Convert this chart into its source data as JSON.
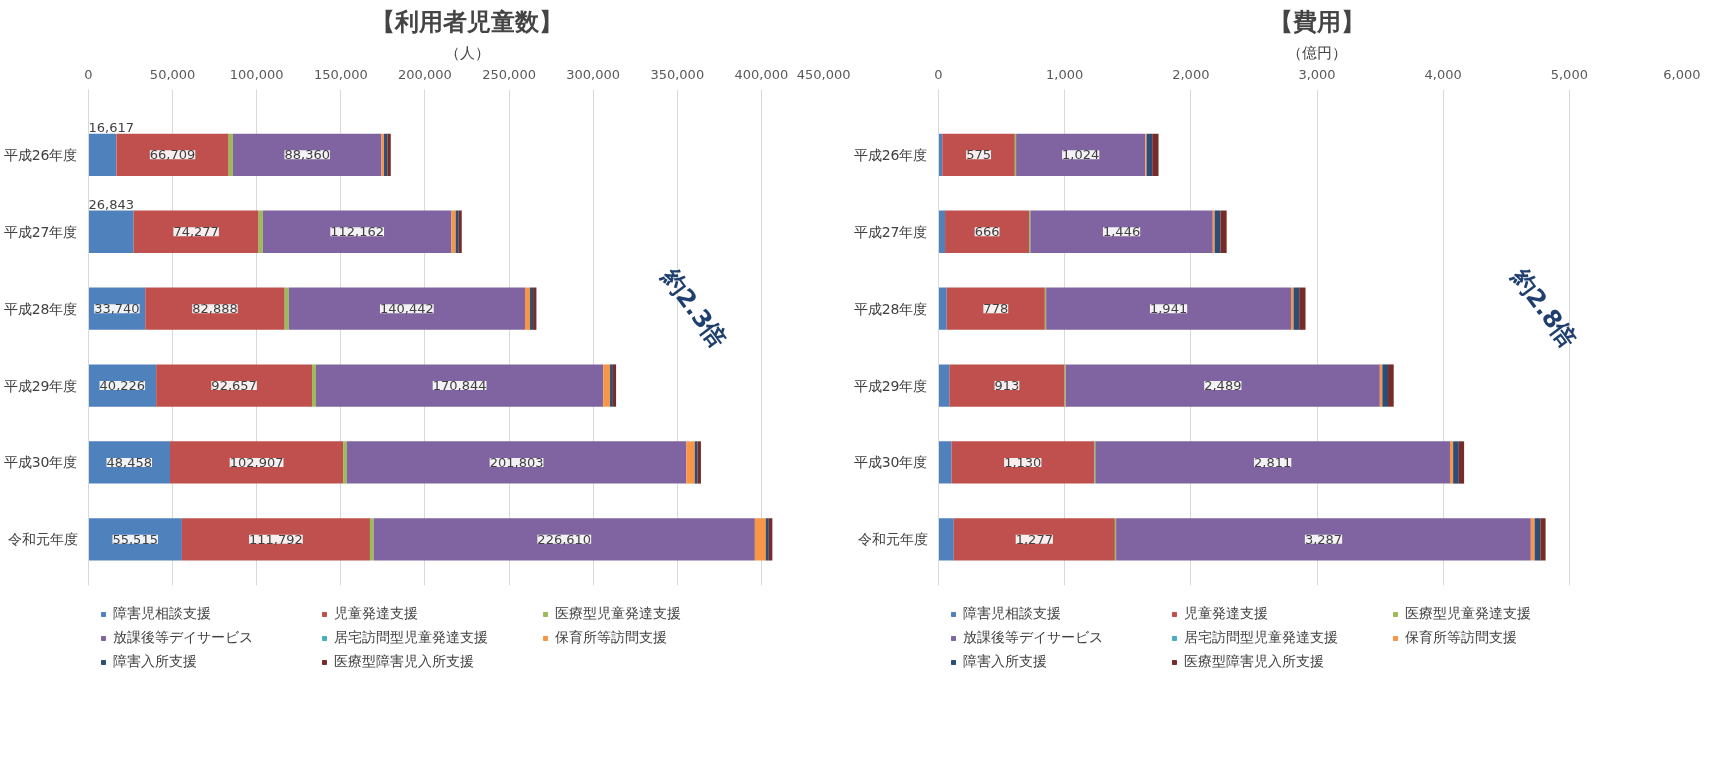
{
  "chart_data": [
    {
      "type": "bar",
      "orientation": "horizontal",
      "stacked": true,
      "title": "【利用者児童数】",
      "xlabel": "（人）",
      "categories": [
        "平成26年度",
        "平成27年度",
        "平成28年度",
        "平成29年度",
        "平成30年度",
        "令和元年度"
      ],
      "xlim": [
        0,
        450000
      ],
      "xticks": [
        0,
        {
          "value": 50000,
          "label": "50,000"
        },
        {
          "value": 100000,
          "label": "100,000"
        },
        {
          "value": 150000,
          "label": "150,000"
        },
        {
          "value": 200000,
          "label": "200,000"
        },
        {
          "value": 250000,
          "label": "250,000"
        },
        {
          "value": 300000,
          "label": "300,000"
        },
        {
          "value": 350000,
          "label": "350,000"
        },
        {
          "value": 400000,
          "label": "400,000"
        },
        {
          "value": 450000,
          "label": "450,000"
        }
      ],
      "grid": "x",
      "legend": "bottom",
      "annotations": [
        "約2.3倍"
      ],
      "series": [
        {
          "name": "障害児相談支援",
          "color": "#4f81bd",
          "values": [
            16617,
            26843,
            33740,
            40226,
            48458,
            55515
          ],
          "value_labels": [
            "16,617",
            "26,843",
            "33,740",
            "40,226",
            "48,458",
            "55,515"
          ]
        },
        {
          "name": "児童発達支援",
          "color": "#c0504d",
          "values": [
            66709,
            74277,
            82888,
            92657,
            102907,
            111792
          ],
          "value_labels": [
            "66,709",
            "74,277",
            "82,888",
            "92,657",
            "102,907",
            "111,792"
          ]
        },
        {
          "name": "医療型児童発達支援",
          "color": "#9bbb59",
          "values": [
            2500,
            2500,
            2400,
            2300,
            2200,
            2200
          ]
        },
        {
          "name": "放課後等デイサービス",
          "color": "#8064a2",
          "values": [
            88360,
            112162,
            140442,
            170844,
            201803,
            226610
          ],
          "value_labels": [
            "88,360",
            "112,162",
            "140,442",
            "170,844",
            "201,803",
            "226,610"
          ]
        },
        {
          "name": "居宅訪問型児童発達支援",
          "color": "#4bacc6",
          "values": [
            0,
            0,
            0,
            0,
            null,
            null
          ]
        },
        {
          "name": "保育所等訪問支援",
          "color": "#f79646",
          "values": [
            1500,
            2500,
            3000,
            4000,
            5000,
            6500
          ]
        },
        {
          "name": "障害入所支援",
          "color": "#2c4d75",
          "values": [
            2000,
            1800,
            1800,
            1700,
            1700,
            1800
          ]
        },
        {
          "name": "医療型障害児入所支援",
          "color": "#772c2a",
          "values": [
            2000,
            1800,
            2000,
            1900,
            2000,
            2100
          ]
        }
      ]
    },
    {
      "type": "bar",
      "orientation": "horizontal",
      "stacked": true,
      "title": "【費用】",
      "xlabel": "（億円）",
      "categories": [
        "平成26年度",
        "平成27年度",
        "平成28年度",
        "平成29年度",
        "平成30年度",
        "令和元年度"
      ],
      "xlim": [
        0,
        6000
      ],
      "xticks": [
        0,
        {
          "value": 1000,
          "label": "1,000"
        },
        {
          "value": 2000,
          "label": "2,000"
        },
        {
          "value": 3000,
          "label": "3,000"
        },
        {
          "value": 4000,
          "label": "4,000"
        },
        {
          "value": 5000,
          "label": "5,000"
        },
        {
          "value": 6000,
          "label": "6,000"
        }
      ],
      "grid": "x",
      "legend": "bottom",
      "annotations": [
        "約2.8倍"
      ],
      "series": [
        {
          "name": "障害児相談支援",
          "color": "#4f81bd",
          "values": [
            30,
            52,
            65,
            86,
            103,
            121
          ]
        },
        {
          "name": "児童発達支援",
          "color": "#c0504d",
          "values": [
            575,
            666,
            778,
            913,
            1130,
            1277
          ],
          "value_labels": [
            "575",
            "666",
            "778",
            "913",
            "1,130",
            "1,277"
          ]
        },
        {
          "name": "医療型児童発達支援",
          "color": "#9bbb59",
          "values": [
            10,
            10,
            10,
            10,
            10,
            10
          ]
        },
        {
          "name": "放課後等デイサービス",
          "color": "#8064a2",
          "values": [
            1024,
            1446,
            1941,
            2489,
            2811,
            3287
          ],
          "value_labels": [
            "1,024",
            "1,446",
            "1,941",
            "2,489",
            "2,811",
            "3,287"
          ]
        },
        {
          "name": "居宅訪問型児童発達支援",
          "color": "#4bacc6",
          "values": [
            0,
            0,
            0,
            0,
            null,
            null
          ]
        },
        {
          "name": "保育所等訪問支援",
          "color": "#f79646",
          "values": [
            10,
            15,
            20,
            20,
            25,
            30
          ]
        },
        {
          "name": "障害入所支援",
          "color": "#2c4d75",
          "values": [
            45,
            45,
            45,
            45,
            45,
            45
          ]
        },
        {
          "name": "医療型障害児入所支援",
          "color": "#772c2a",
          "values": [
            50,
            50,
            50,
            45,
            42,
            42
          ]
        }
      ]
    }
  ]
}
